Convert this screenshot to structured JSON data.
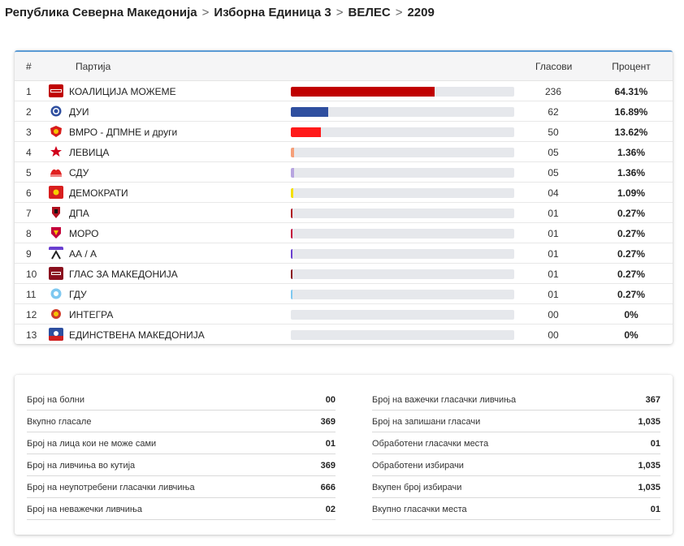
{
  "breadcrumb": [
    "Република Северна Македонија",
    "Изборна Единица 3",
    "ВЕЛЕС",
    "2209"
  ],
  "table": {
    "headers": {
      "num": "#",
      "party": "Партија",
      "votes": "Гласови",
      "percent": "Процент"
    },
    "rows": [
      {
        "num": "1",
        "party": "КОАЛИЦИЈА МОЖЕМЕ",
        "votes": "236",
        "percent": "64.31%",
        "share": 64.31,
        "color": "#c00000",
        "logo": "mozeme-logo"
      },
      {
        "num": "2",
        "party": "ДУИ",
        "votes": "62",
        "percent": "16.89%",
        "share": 16.89,
        "color": "#2f4f9f",
        "logo": "dui-logo"
      },
      {
        "num": "3",
        "party": "ВМРО - ДПМНЕ и други",
        "votes": "50",
        "percent": "13.62%",
        "share": 13.62,
        "color": "#ff1a1a",
        "logo": "vmro-logo"
      },
      {
        "num": "4",
        "party": "ЛЕВИЦА",
        "votes": "05",
        "percent": "1.36%",
        "share": 1.36,
        "color": "#f5a07a",
        "logo": "levica-logo"
      },
      {
        "num": "5",
        "party": "СДУ",
        "votes": "05",
        "percent": "1.36%",
        "share": 1.36,
        "color": "#b8a6e0",
        "logo": "sdu-logo"
      },
      {
        "num": "6",
        "party": "ДЕМОКРАТИ",
        "votes": "04",
        "percent": "1.09%",
        "share": 1.09,
        "color": "#f5e000",
        "logo": "demokrati-logo"
      },
      {
        "num": "7",
        "party": "ДПА",
        "votes": "01",
        "percent": "0.27%",
        "share": 0.27,
        "color": "#b01020",
        "logo": "dpa-logo"
      },
      {
        "num": "8",
        "party": "МОРО",
        "votes": "01",
        "percent": "0.27%",
        "share": 0.27,
        "color": "#c4003a",
        "logo": "moro-logo"
      },
      {
        "num": "9",
        "party": "АА / А",
        "votes": "01",
        "percent": "0.27%",
        "share": 0.27,
        "color": "#6a3fd0",
        "logo": "aa-logo"
      },
      {
        "num": "10",
        "party": "ГЛАС ЗА МАКЕДОНИЈА",
        "votes": "01",
        "percent": "0.27%",
        "share": 0.27,
        "color": "#8a0f1e",
        "logo": "glas-logo"
      },
      {
        "num": "11",
        "party": "ГДУ",
        "votes": "01",
        "percent": "0.27%",
        "share": 0.27,
        "color": "#7ec8f0",
        "logo": "gdu-logo"
      },
      {
        "num": "12",
        "party": "ИНТЕГРА",
        "votes": "00",
        "percent": "0%",
        "share": 0,
        "color": "#d03a2a",
        "logo": "integra-logo"
      },
      {
        "num": "13",
        "party": "ЕДИНСТВЕНА МАКЕДОНИЈА",
        "votes": "00",
        "percent": "0%",
        "share": 0,
        "color": "#2e4fa0",
        "logo": "edinstvena-logo"
      }
    ]
  },
  "stats": {
    "left": [
      {
        "label": "Број на болни",
        "value": "00"
      },
      {
        "label": "Вкупно гласале",
        "value": "369"
      },
      {
        "label": "Број на лица кои не може сами",
        "value": "01"
      },
      {
        "label": "Број на ливчиња во кутија",
        "value": "369"
      },
      {
        "label": "Број на неупотребени гласачки ливчиња",
        "value": "666"
      },
      {
        "label": "Број на неважечки ливчиња",
        "value": "02"
      }
    ],
    "right": [
      {
        "label": "Број на важечки гласачки ливчиња",
        "value": "367"
      },
      {
        "label": "Број на запишани гласачи",
        "value": "1,035"
      },
      {
        "label": "Обработени гласачки места",
        "value": "01"
      },
      {
        "label": "Обработени избирачи",
        "value": "1,035"
      },
      {
        "label": "Вкупен број избирачи",
        "value": "1,035"
      },
      {
        "label": "Вкупно гласачки места",
        "value": "01"
      }
    ]
  }
}
